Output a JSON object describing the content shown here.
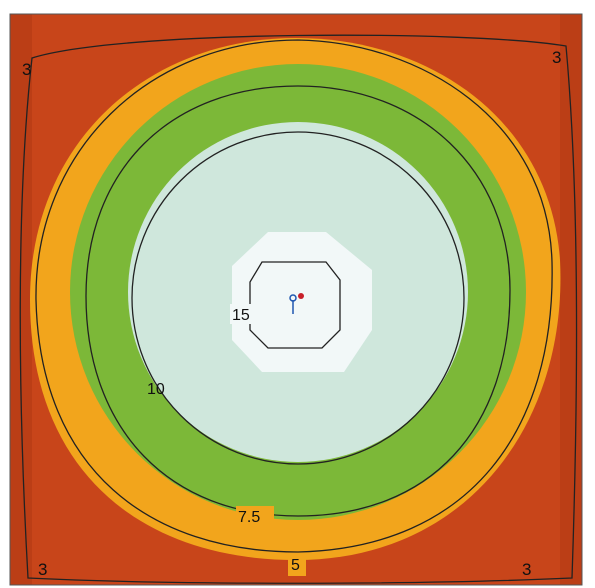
{
  "chart_data": {
    "type": "heatmap",
    "subtype": "filled contour map",
    "color_bands": [
      {
        "band": "outer",
        "color": "#c8451a"
      },
      {
        "band": "orange",
        "color": "#f2a51c"
      },
      {
        "band": "green",
        "color": "#7cb838"
      },
      {
        "band": "light",
        "color": "#cfe7dc"
      },
      {
        "band": "center",
        "color": "#f2f8f8"
      }
    ],
    "contours": [
      {
        "level": 15,
        "label": "15"
      },
      {
        "level": 10,
        "label": "10"
      },
      {
        "level": 7.5,
        "label": "7.5"
      },
      {
        "level": 5,
        "label": "5"
      },
      {
        "level": 3,
        "label": "3"
      }
    ],
    "corner_labels": [
      "3",
      "3",
      "3",
      "3"
    ],
    "center_marker_colors": [
      "#1f57b0",
      "#c8202a"
    ]
  }
}
